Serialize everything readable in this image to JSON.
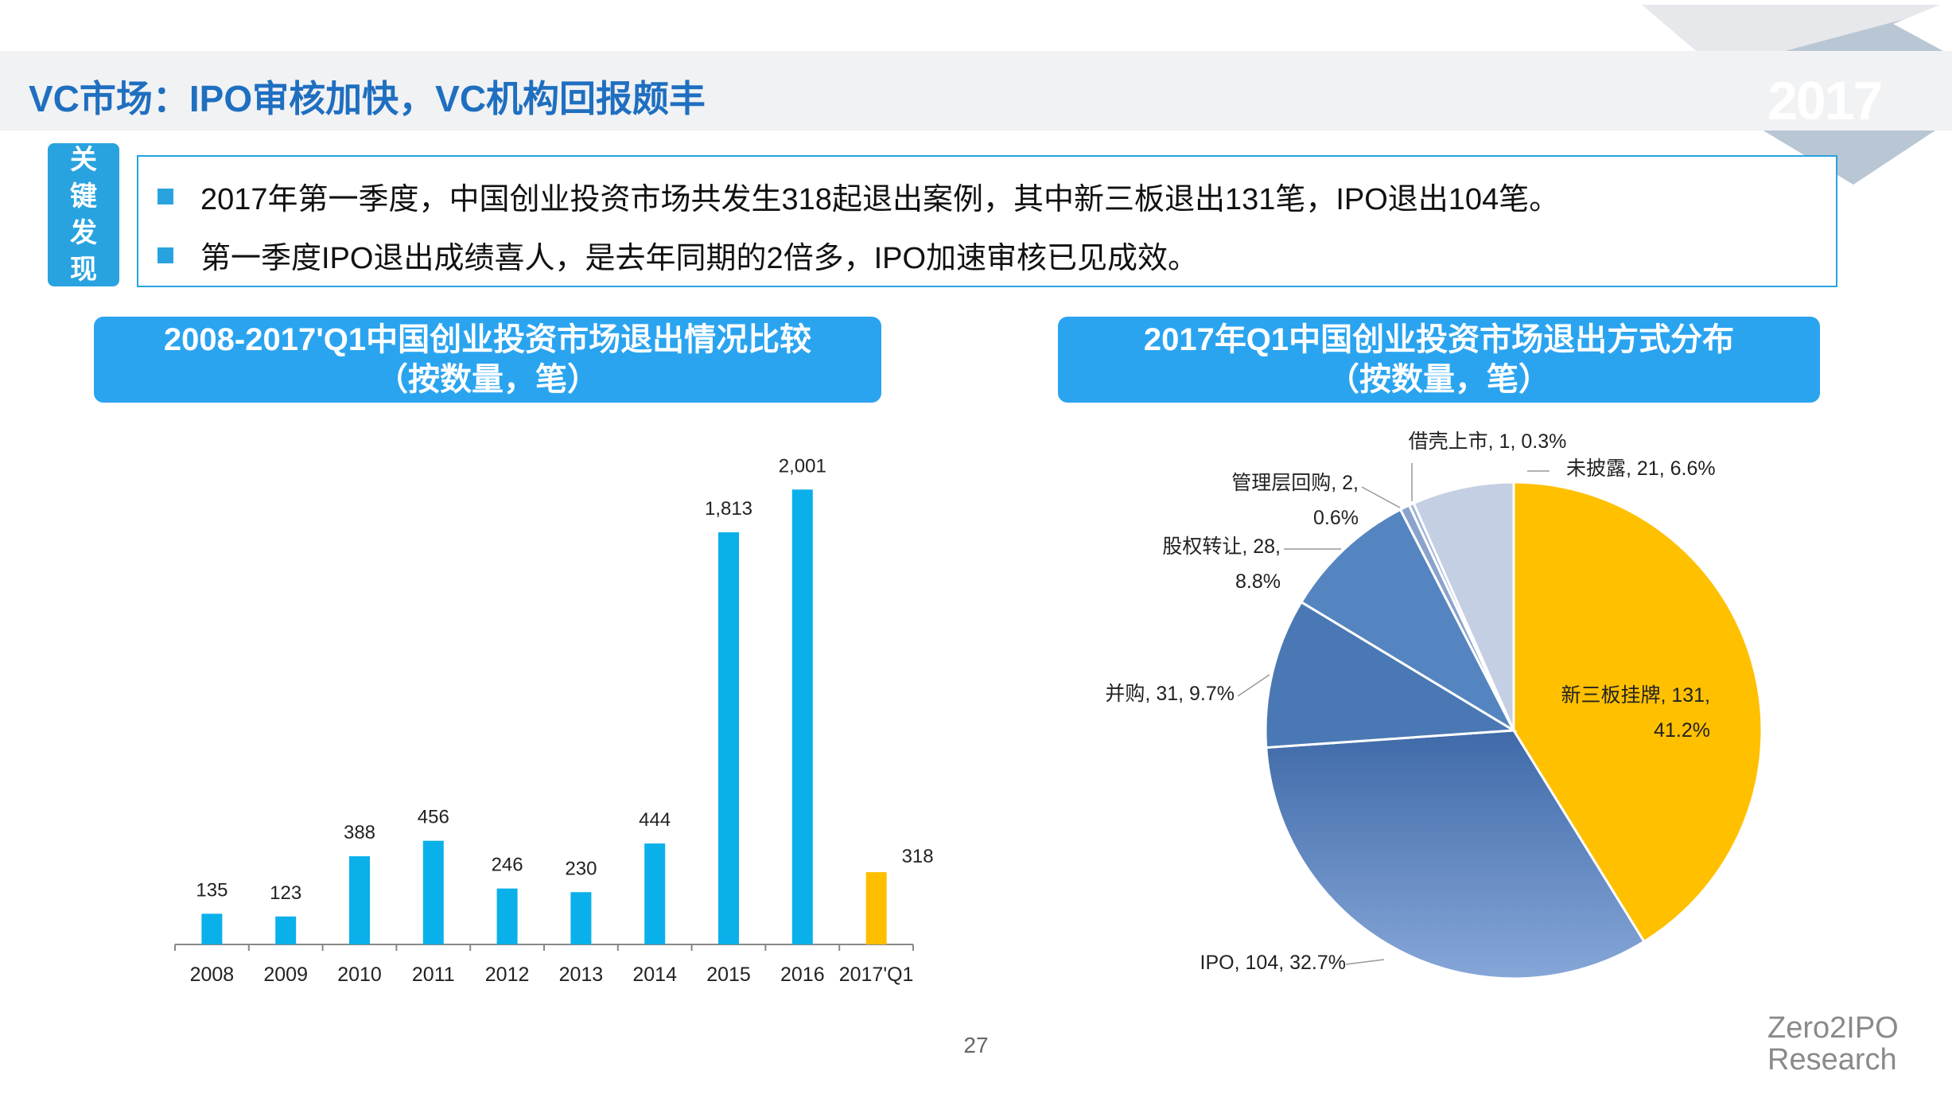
{
  "header": {
    "title": "VC市场：IPO审核加快，VC机构回报颇丰",
    "year_badge": "2017"
  },
  "key_findings": {
    "label_chars": [
      "关",
      "键",
      "发",
      "现"
    ],
    "items": [
      "2017年第一季度，中国创业投资市场共发生318起退出案例，其中新三板退出131笔，IPO退出104笔。",
      "第一季度IPO退出成绩喜人，是去年同期的2倍多，IPO加速审核已见成效。"
    ]
  },
  "colors": {
    "accent": "#2ba4f0",
    "title_blue": "#1f6fc0",
    "bar": "#0ab0ea",
    "highlight": "#ffbf00"
  },
  "chart_data": [
    {
      "type": "bar",
      "title_line1": "2008-2017'Q1中国创业投资市场退出情况比较",
      "title_line2": "（按数量，笔）",
      "categories": [
        "2008",
        "2009",
        "2010",
        "2011",
        "2012",
        "2013",
        "2014",
        "2015",
        "2016",
        "2017'Q1"
      ],
      "values": [
        135,
        123,
        388,
        456,
        246,
        230,
        444,
        1813,
        2001,
        318
      ],
      "value_labels": [
        "135",
        "123",
        "388",
        "456",
        "246",
        "230",
        "444",
        "1,813",
        "2,001",
        "318"
      ],
      "highlight_index": 9,
      "ylim": [
        0,
        2100
      ],
      "xlabel": "",
      "ylabel": ""
    },
    {
      "type": "pie",
      "title_line1": "2017年Q1中国创业投资市场退出方式分布",
      "title_line2": "（按数量，笔）",
      "slices": [
        {
          "name": "新三板挂牌",
          "value": 131,
          "percent": 41.2,
          "label_lines": [
            "新三板挂牌, 131,",
            "41.2%"
          ],
          "color": "#ffc000"
        },
        {
          "name": "IPO",
          "value": 104,
          "percent": 32.7,
          "label_lines": [
            "IPO, 104, 32.7%"
          ],
          "color": "#5b84bd"
        },
        {
          "name": "并购",
          "value": 31,
          "percent": 9.7,
          "label_lines": [
            "并购, 31, 9.7%"
          ],
          "color": "#4a78b4"
        },
        {
          "name": "股权转让",
          "value": 28,
          "percent": 8.8,
          "label_lines": [
            "股权转让, 28,",
            "8.8%"
          ],
          "color": "#5585c0"
        },
        {
          "name": "管理层回购",
          "value": 2,
          "percent": 0.6,
          "label_lines": [
            "管理层回购, 2,",
            "0.6%"
          ],
          "color": "#8aa3cc"
        },
        {
          "name": "借壳上市",
          "value": 1,
          "percent": 0.3,
          "label_lines": [
            "借壳上市, 1, 0.3%"
          ],
          "color": "#9fb4d8"
        },
        {
          "name": "未披露",
          "value": 21,
          "percent": 6.6,
          "label_lines": [
            "未披露, 21, 6.6%"
          ],
          "color": "#c5cfe3"
        }
      ]
    }
  ],
  "footer": {
    "page_number": "27",
    "logo_line1": "Zero2IPO",
    "logo_line2": "Research"
  }
}
